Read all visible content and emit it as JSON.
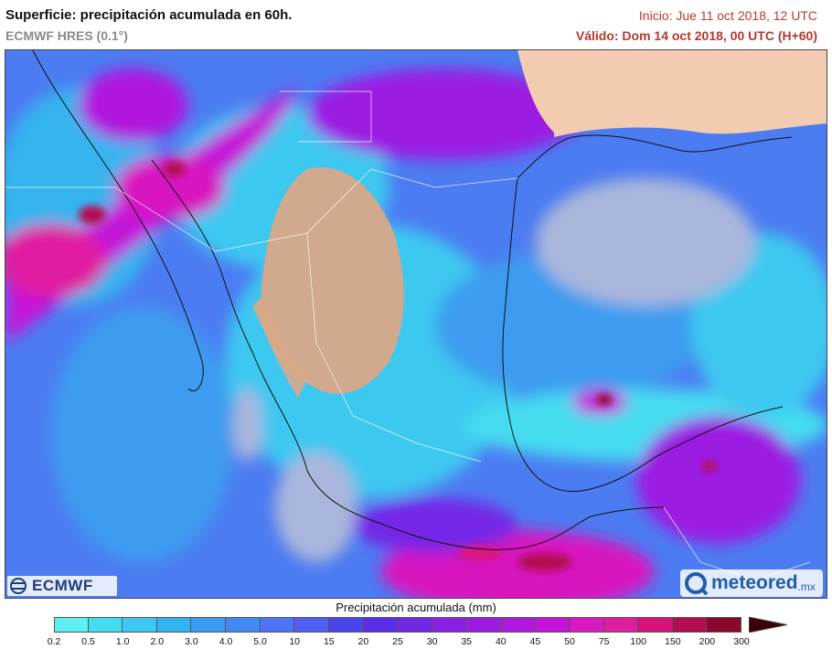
{
  "header": {
    "title": "Superficie: precipitación acumulada en 60h.",
    "model": "ECMWF HRES (0.1°)",
    "init": "Inicio: Jue 11 oct 2018, 12 UTC",
    "valid": "Válido: Dom 14 oct 2018, 00 UTC (H+60)"
  },
  "logos": {
    "ecmwf": "ECMWF",
    "meteored": "meteored",
    "meteored_suffix": ".mx"
  },
  "legend": {
    "title": "Precipitación acumulada (mm)",
    "ticks": [
      "0.2",
      "0.5",
      "1.0",
      "2.0",
      "3.0",
      "4.0",
      "5.0",
      "10",
      "15",
      "20",
      "25",
      "30",
      "35",
      "40",
      "45",
      "50",
      "75",
      "100",
      "150",
      "200",
      "300"
    ],
    "colors": [
      "#5ef0f0",
      "#44dcf0",
      "#3cc8f0",
      "#34b4ee",
      "#3c9cf0",
      "#4488f2",
      "#4c74f4",
      "#5060f4",
      "#4a46ee",
      "#5a2ee8",
      "#7426e6",
      "#8a20e4",
      "#9c1ce2",
      "#b018de",
      "#c414d8",
      "#d818c0",
      "#e01ca0",
      "#d8147a",
      "#b40c52",
      "#8a0830",
      "#5a0414"
    ]
  },
  "map": {
    "land_color": "#f3cbb0",
    "dry_land_color": "#d8a888",
    "sea_dry_color": "#aab6dc",
    "region": "Mexico"
  }
}
